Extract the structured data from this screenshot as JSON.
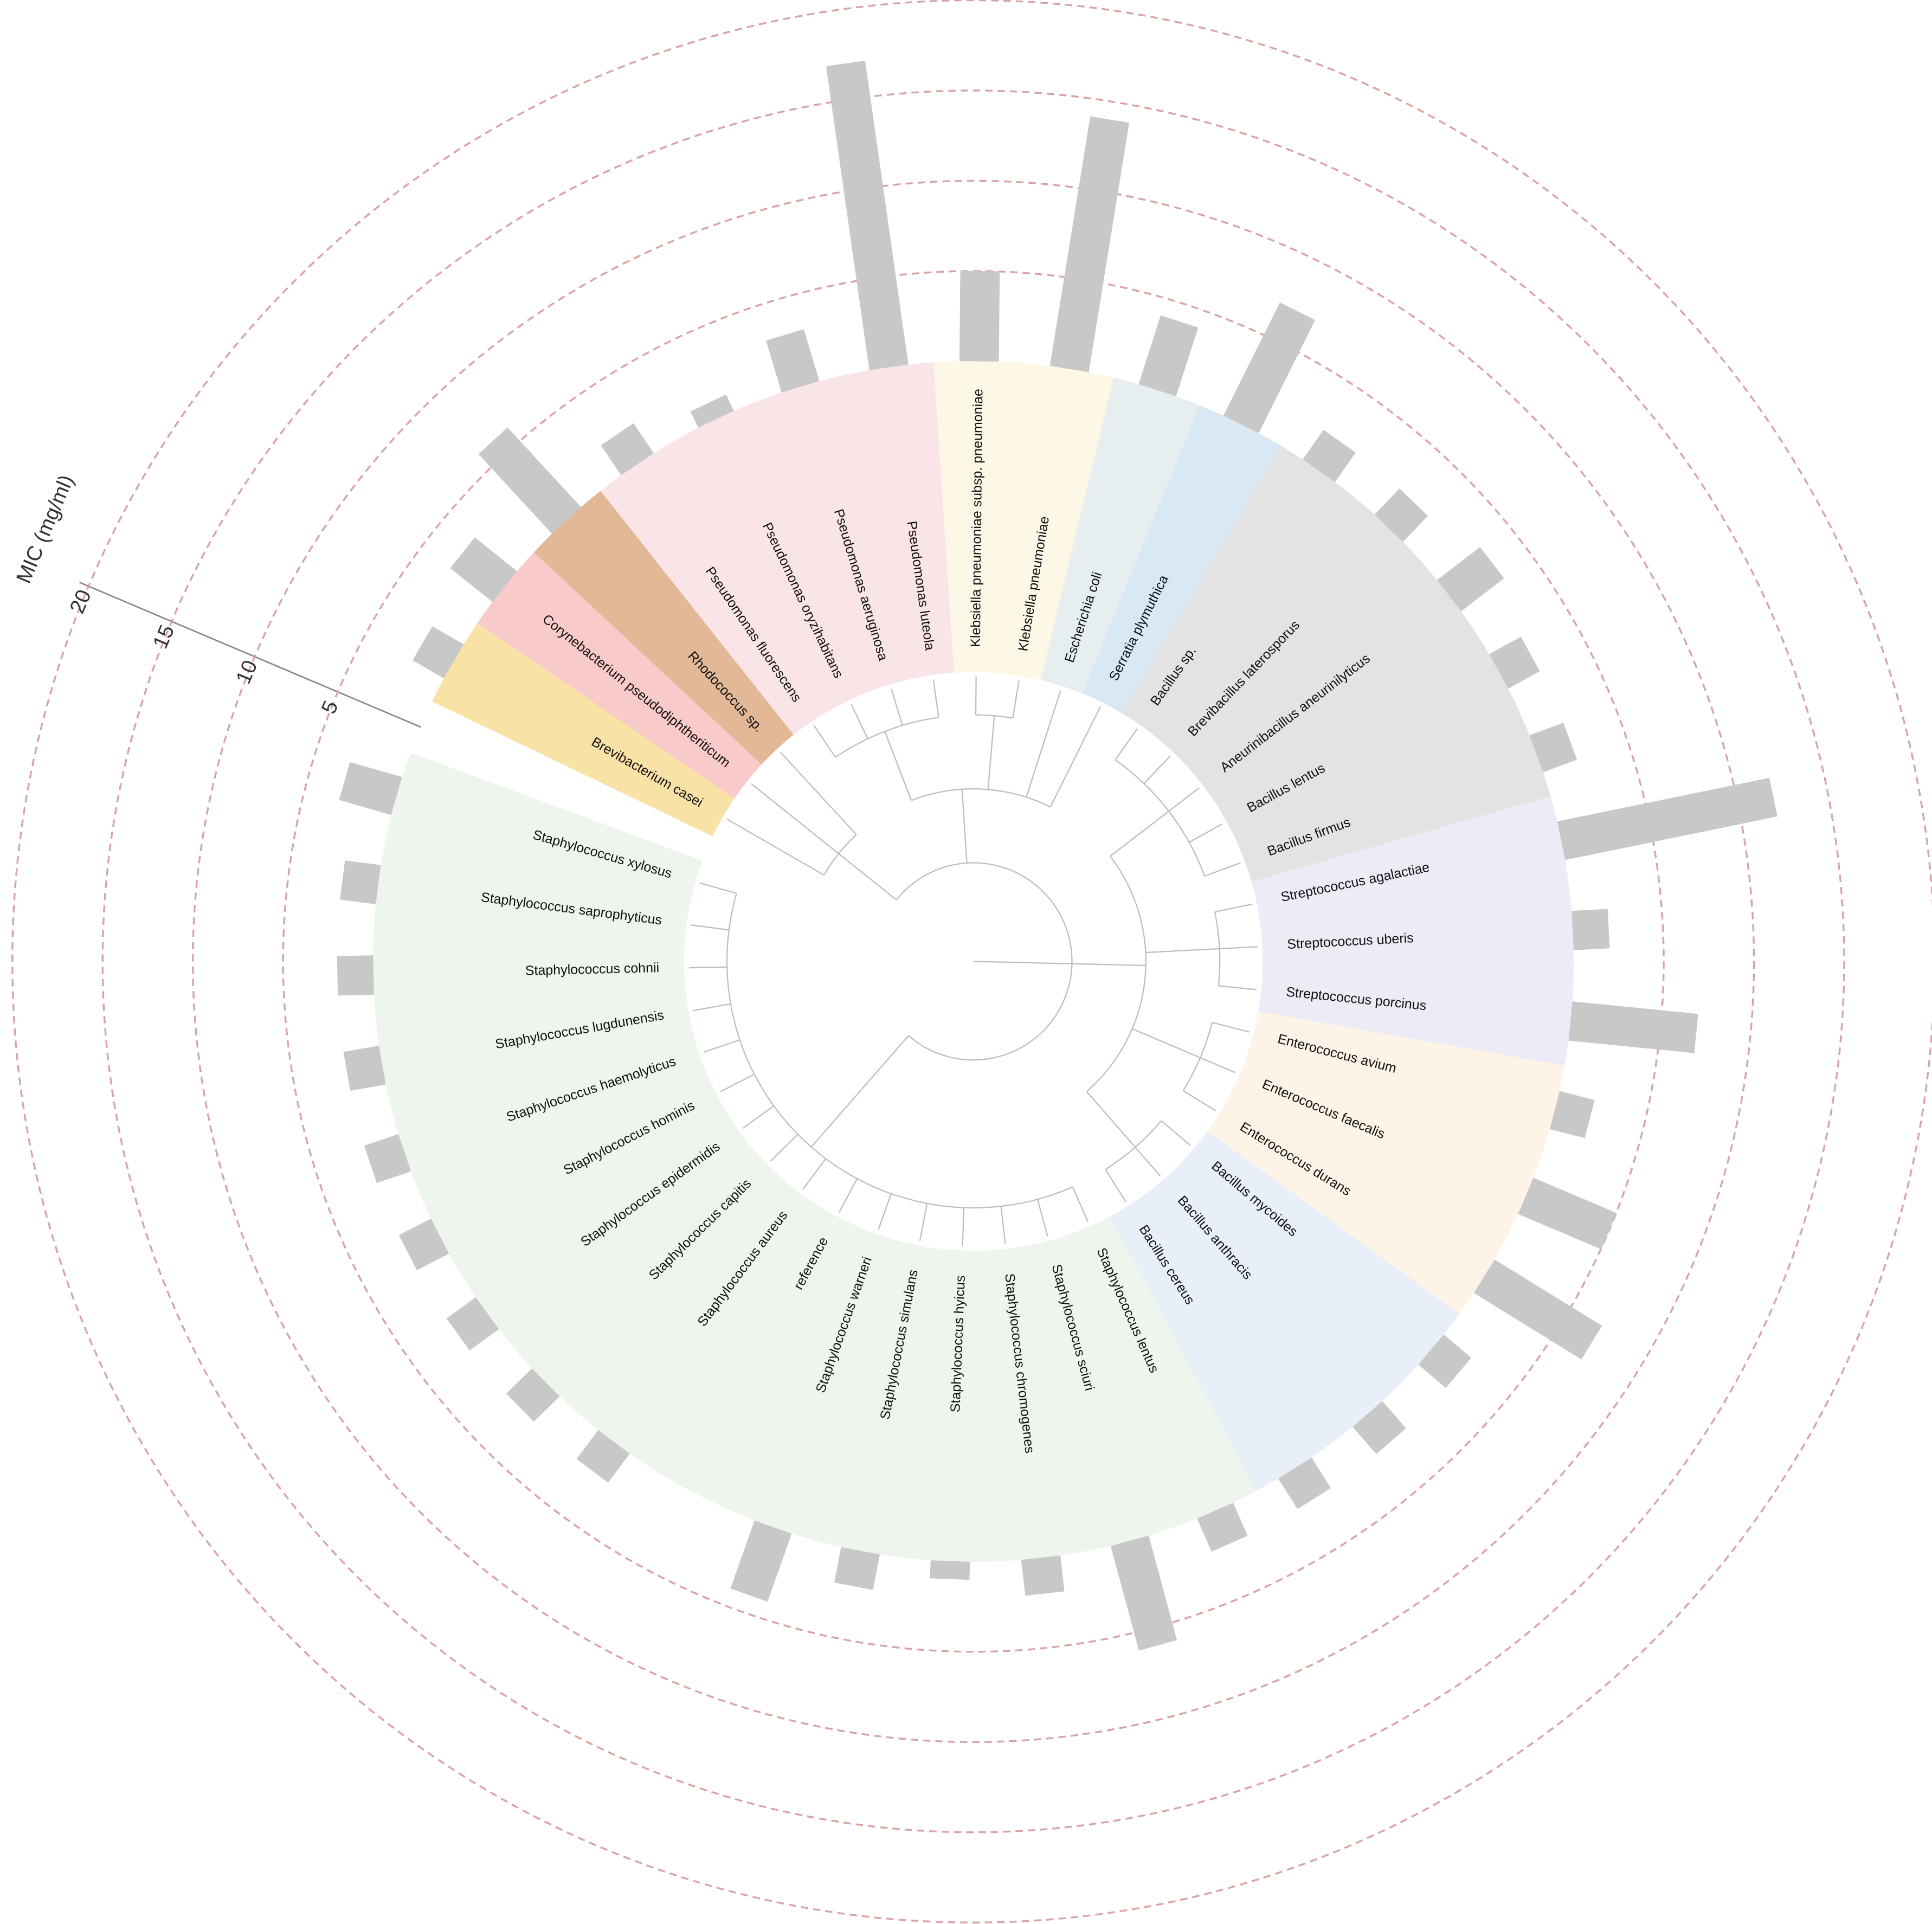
{
  "chart_data": {
    "type": "radial_bar",
    "y_label": "MIC (mg/ml)",
    "categories": [
      "Brevibacterium casei",
      "Corynebacterium pseudodiphtheriticum",
      "Rhodococcus sp.",
      "Pseudomonas fluorescens",
      "Pseudomonas oryzihabitans",
      "Pseudomonas aeruginosa",
      "Pseudomonas luteola",
      "Klebsiella pneumoniae subsp. pneumoniae",
      "Klebsiella pneumoniae",
      "Escherichia coli",
      "Serratia plymuthica",
      "Bacillus sp.",
      "Brevibacillus laterosporus",
      "Aneurinibacillus aneurinilyticus",
      "Bacillus lentus",
      "Bacillus firmus",
      "Streptococcus agalactiae",
      "Streptococcus uberis",
      "Streptococcus porcinus",
      "Enterococcus avium",
      "Enterococcus faecalis",
      "Enterococcus durans",
      "Bacillus mycoides",
      "Bacillus anthracis",
      "Bacillus cereus",
      "Staphylococcus lentus",
      "Staphylococcus sciuri",
      "Staphylococcus chromogenes",
      "Staphylococcus hyicus",
      "Staphylococcus simulans",
      "Staphylococcus warneri",
      "reference",
      "Staphylococcus aureus",
      "Staphylococcus capitis",
      "Staphylococcus epidermidis",
      "Staphylococcus hominis",
      "Staphylococcus haemolyticus",
      "Staphylococcus lugdunensis",
      "Staphylococcus cohnii",
      "Staphylococcus saprophyticus",
      "Staphylococcus xylosus"
    ],
    "values": [
      2,
      3,
      6,
      2,
      1,
      3,
      17,
      5,
      14,
      4,
      7,
      2,
      2,
      3,
      2,
      2,
      12,
      2,
      7,
      2,
      5,
      7,
      2,
      2,
      2,
      2,
      6,
      2,
      1,
      2,
      4,
      0,
      2,
      2,
      2,
      2,
      2,
      2,
      2,
      2,
      3
    ],
    "color": "#c8c8c8",
    "sector_colors": [
      "#f8e2a6",
      "#f9caca",
      "#e2b896",
      "#f9e5e7",
      "#f9e5e7",
      "#f9e5e7",
      "#f9e5e7",
      "#fdf8e6",
      "#fdf8e6",
      "#e6eef0",
      "#d9e8f5",
      "#e3e3e3",
      "#e3e3e3",
      "#e3e3e3",
      "#e3e3e3",
      "#e3e3e3",
      "#edebf6",
      "#edebf6",
      "#edebf6",
      "#fdf3e6",
      "#fdf3e6",
      "#fdf3e6",
      "#e9eff9",
      "#e9eff9",
      "#e9eff9",
      "#eef5ec",
      "#eef5ec",
      "#eef5ec",
      "#eef5ec",
      "#eef5ec",
      "#eef5ec",
      "#eef5ec",
      "#eef5ec",
      "#eef5ec",
      "#eef5ec",
      "#eef5ec",
      "#eef5ec",
      "#eef5ec",
      "#eef5ec",
      "#eef5ec",
      "#eef5ec"
    ],
    "ylim": [
      0,
      20
    ],
    "yticks": [
      5,
      10,
      15,
      20
    ],
    "grid": true,
    "grid_color": "#d9a3a3"
  }
}
